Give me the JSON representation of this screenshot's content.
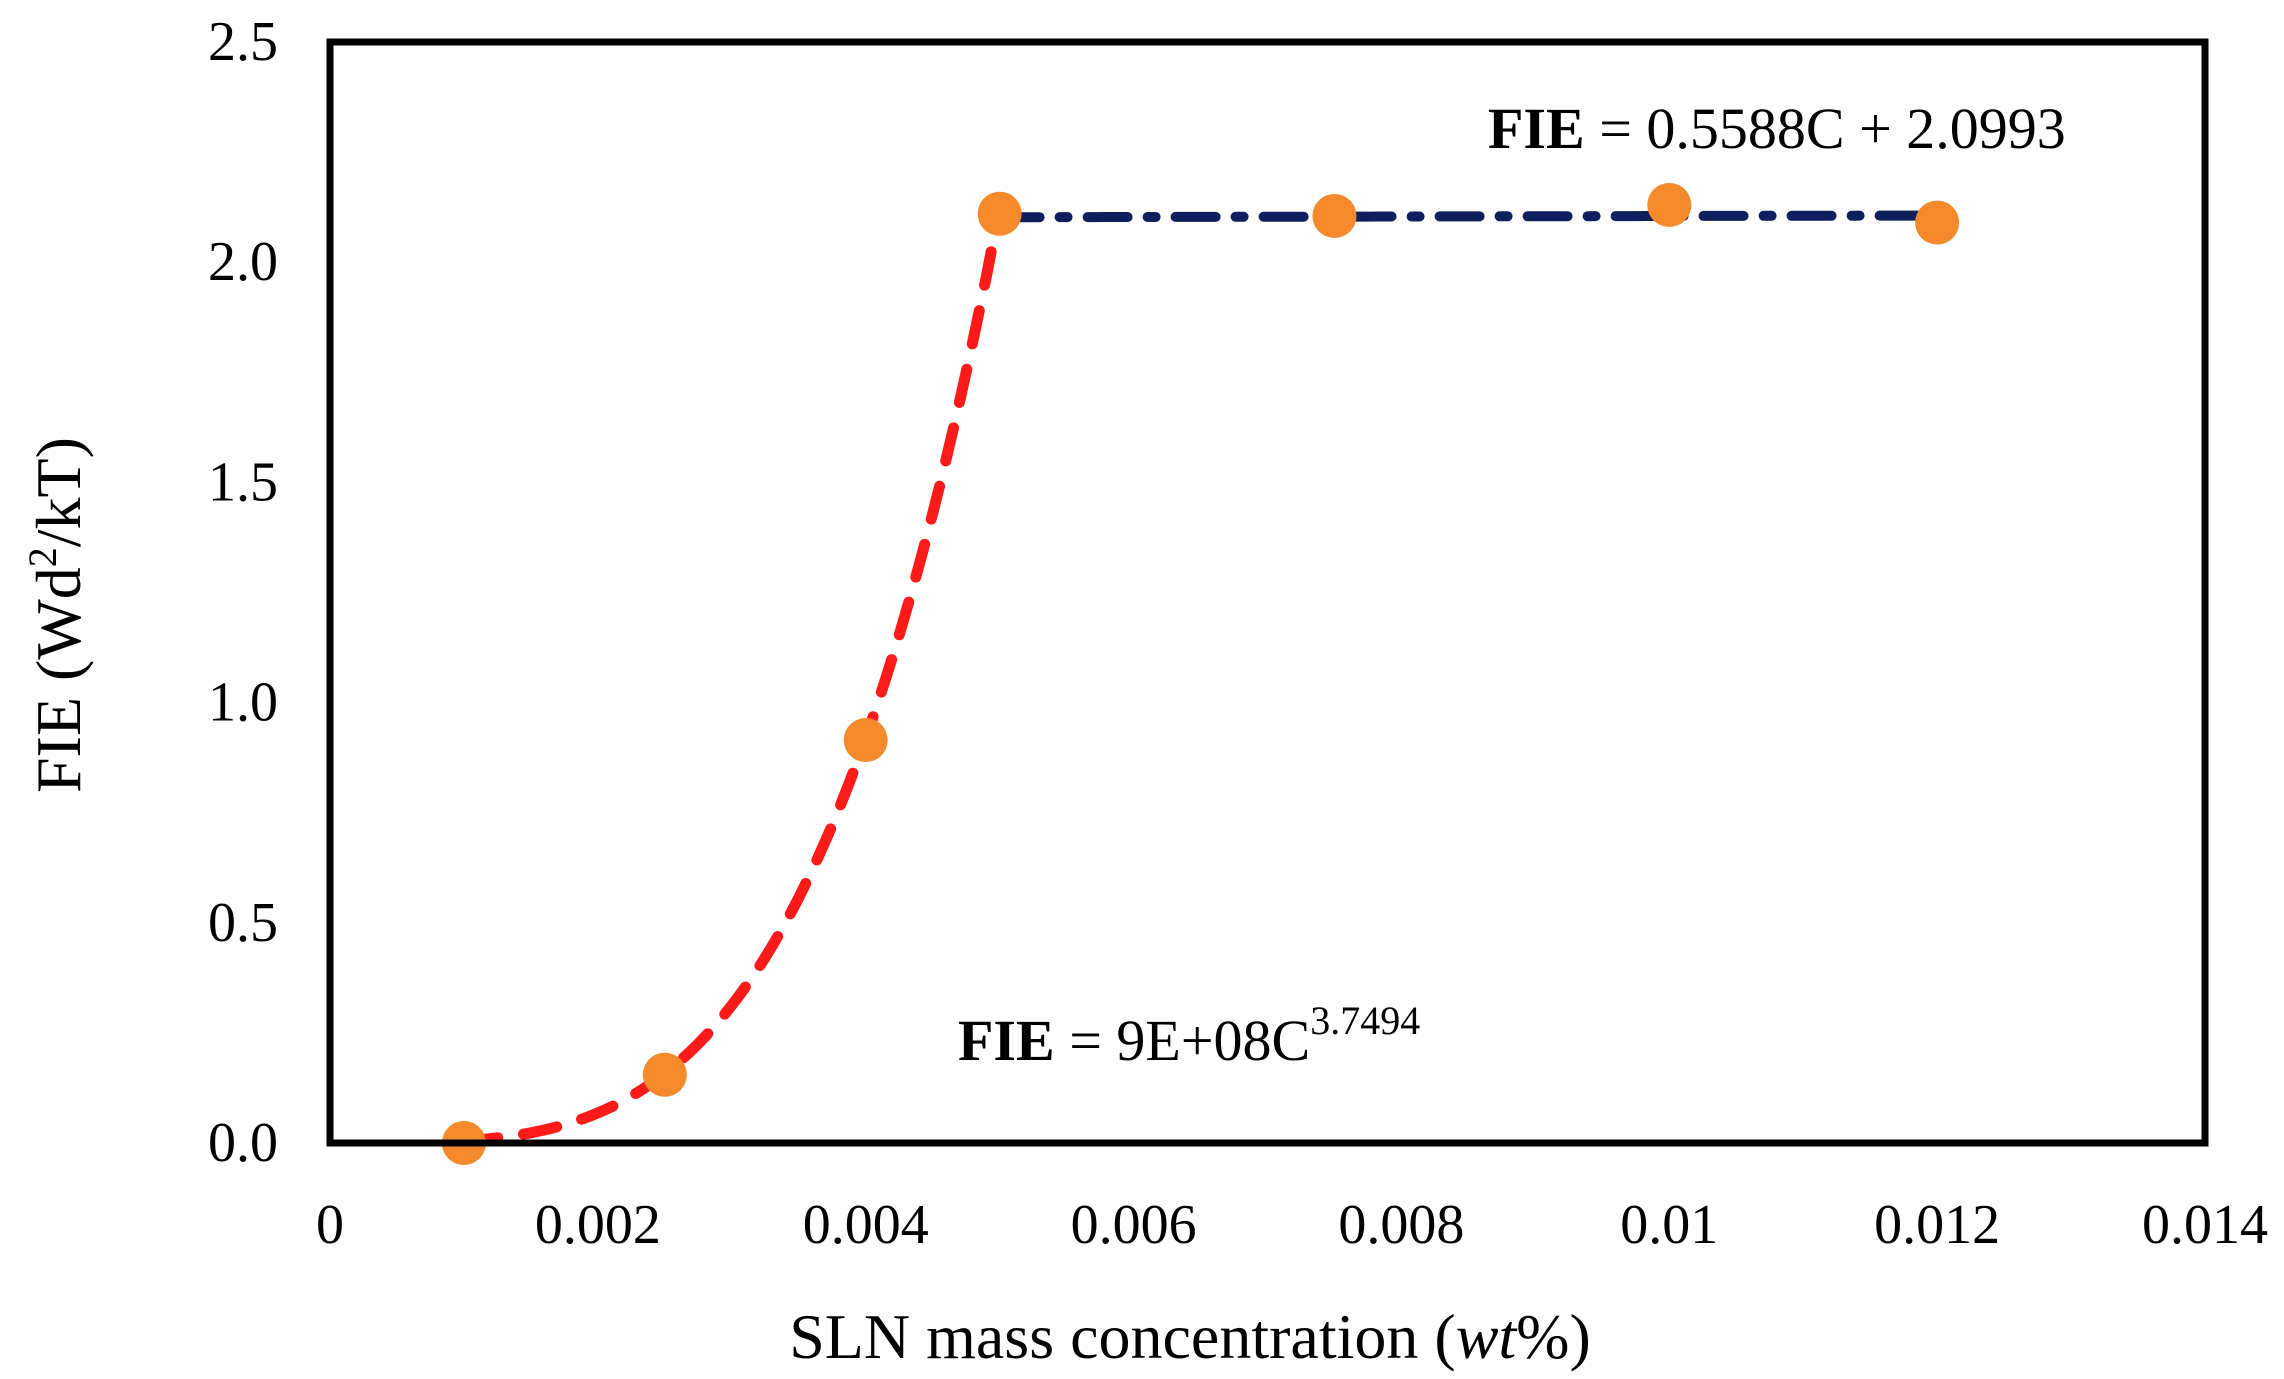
{
  "chart_data": {
    "type": "scatter",
    "xlabel": {
      "main": "SLN mass concentration (",
      "italic": "wt",
      "end": "%)"
    },
    "ylabel": {
      "main": "FIE (Wd",
      "sup": "2",
      "end": "/kT)"
    },
    "xlim": [
      0,
      0.014
    ],
    "ylim": [
      0,
      2.5
    ],
    "x_ticks": [
      "0",
      "0.002",
      "0.004",
      "0.006",
      "0.008",
      "0.01",
      "0.012",
      "0.014"
    ],
    "x_tick_values": [
      0,
      0.002,
      0.004,
      0.006,
      0.008,
      0.01,
      0.012,
      0.014
    ],
    "y_ticks": [
      "0.0",
      "0.5",
      "1.0",
      "1.5",
      "2.0",
      "2.5"
    ],
    "y_tick_values": [
      0,
      0.5,
      1.0,
      1.5,
      2.0,
      2.5
    ],
    "grid": false,
    "series": [
      {
        "x": [
          0.001,
          0.0025,
          0.004,
          0.005,
          0.0075,
          0.01,
          0.012
        ],
        "y": [
          0.0,
          0.155,
          0.915,
          2.11,
          2.105,
          2.13,
          2.09
        ],
        "color": "#F58A2C"
      }
    ],
    "fits": [
      {
        "style": "dashed",
        "color": "#FF1A1A",
        "model": "power",
        "coef": 900000000,
        "exponent": 3.7494,
        "x_range": [
          0.001,
          0.005
        ],
        "label_bold": "FIE",
        "label_main": " = 9E+08C",
        "label_sup": "3.7494"
      },
      {
        "style": "dash-dot",
        "color": "#0D1F5C",
        "model": "linear",
        "slope": 0.5588,
        "intercept": 2.0993,
        "x_range": [
          0.005,
          0.0119
        ],
        "label_bold": "FIE",
        "label_main": " = 0.5588C + 2.0993",
        "label_sup": ""
      }
    ]
  }
}
